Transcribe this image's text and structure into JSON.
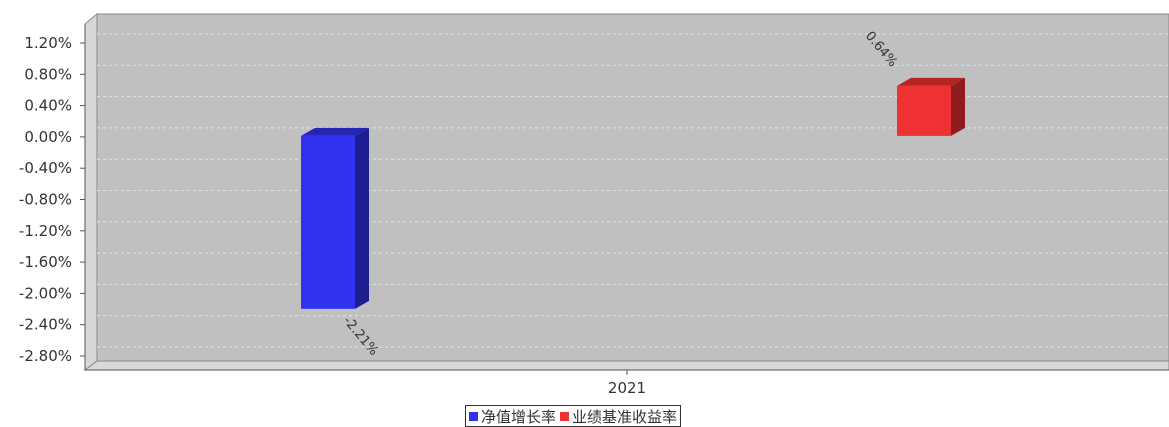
{
  "chart_data": {
    "type": "bar",
    "title": "",
    "categories": [
      "2021"
    ],
    "series": [
      {
        "name": "净值增长率",
        "color": "#3131f0",
        "values": [
          -2.21
        ],
        "label": "-2.21%"
      },
      {
        "name": "业绩基准收益率",
        "color": "#ee3131",
        "values": [
          0.64
        ],
        "label": "0.64%"
      }
    ],
    "y_ticks": [
      "1.20%",
      "0.80%",
      "0.40%",
      "0.00%",
      "-0.40%",
      "-0.80%",
      "-1.20%",
      "-1.60%",
      "-2.00%",
      "-2.40%",
      "-2.80%"
    ],
    "ylim": [
      -2.8,
      1.2
    ],
    "grid": true,
    "legend_position": "bottom"
  }
}
